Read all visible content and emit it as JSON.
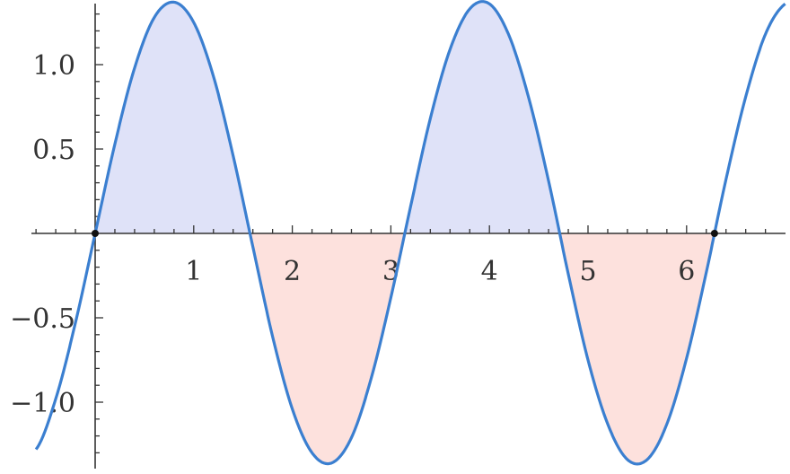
{
  "chart_data": {
    "type": "area",
    "title": "",
    "xlabel": "",
    "ylabel": "",
    "xlim": [
      -0.65,
      7.0
    ],
    "ylim": [
      -1.37,
      1.37
    ],
    "x_ticks": [
      1,
      2,
      3,
      4,
      5,
      6
    ],
    "x_tick_labels": [
      "1",
      "2",
      "3",
      "4",
      "5",
      "6"
    ],
    "y_ticks": [
      1.0,
      0.5,
      -0.5,
      -1.0
    ],
    "y_tick_labels": [
      "1.0",
      "0.5",
      "−0.5",
      "−1.0"
    ],
    "grid": false,
    "fill_range": [
      0,
      6.2832
    ],
    "colors": {
      "line": "#3b7fd0",
      "positive_fill": "#dfe2f8",
      "negative_fill": "#fde1dd",
      "axis": "#333333"
    },
    "series": [
      {
        "x": [
          -0.6,
          -0.4,
          -0.2,
          0,
          0.2,
          0.4,
          0.6,
          0.8,
          1.0,
          1.2,
          1.4,
          1.6,
          1.8,
          2.0,
          2.2,
          2.4,
          2.6,
          2.8,
          3.0,
          3.2,
          3.4,
          3.6,
          3.8,
          4.0,
          4.2,
          4.4,
          4.6,
          4.8,
          5.0,
          5.2,
          5.4,
          5.6,
          5.8,
          6.0,
          6.2,
          6.4,
          6.6,
          6.8,
          7.0
        ],
        "y": [
          -1.28,
          -0.98,
          -0.53,
          0,
          0.53,
          0.98,
          1.28,
          1.37,
          1.25,
          0.93,
          0.46,
          -0.08,
          -0.61,
          -1.04,
          -1.3,
          -1.36,
          -1.21,
          -0.86,
          -0.38,
          0.16,
          0.68,
          1.09,
          1.33,
          1.36,
          1.17,
          0.8,
          0.31,
          -0.24,
          -0.75,
          -1.13,
          -1.34,
          -1.34,
          -1.13,
          -0.74,
          -0.23,
          0.32,
          0.81,
          1.18,
          1.36
        ]
      }
    ],
    "marked_points": [
      [
        0,
        0
      ],
      [
        6.2832,
        0
      ]
    ]
  }
}
